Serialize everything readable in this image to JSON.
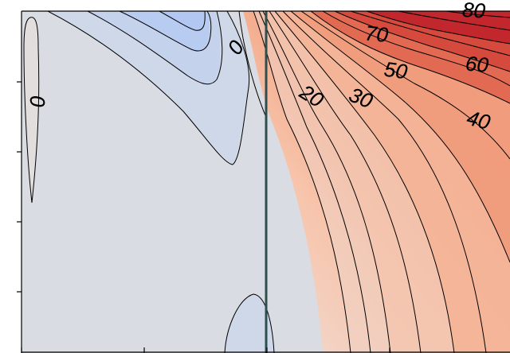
{
  "chart_data": {
    "type": "contour",
    "title": "",
    "xlabel": "",
    "ylabel": "",
    "x_ticks": [
      "",
      "",
      "",
      ""
    ],
    "y_ticks": [
      "",
      "",
      "",
      ""
    ],
    "contour_labels": [
      "0",
      "0",
      "20",
      "30",
      "40",
      "50",
      "60",
      "70",
      "80"
    ],
    "colormap": [
      "#b2c8f2",
      "#d9dce2",
      "#f6bfa4",
      "#c1272d"
    ],
    "vertical_line": {
      "color": "#2f4f4f"
    }
  }
}
